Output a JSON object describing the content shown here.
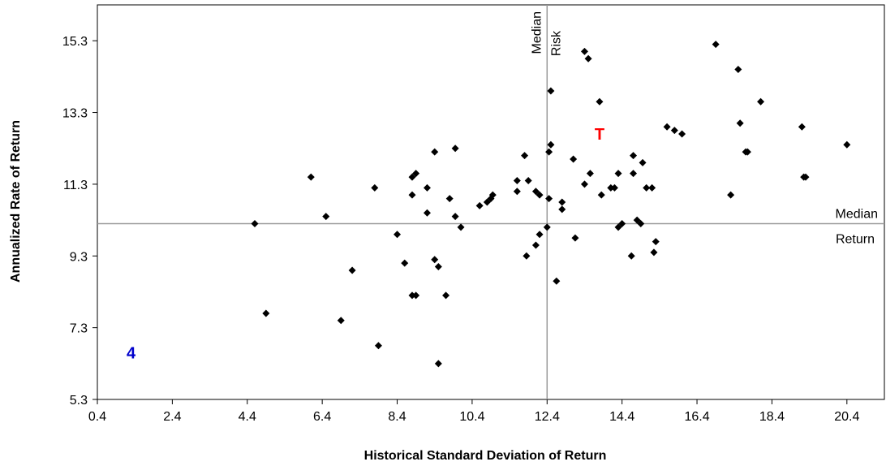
{
  "chart_data": {
    "type": "scatter",
    "xlabel": "Historical Standard Deviation of Return",
    "ylabel": "Annualized Rate of Return",
    "xlim": [
      0.4,
      21.4
    ],
    "ylim": [
      5.3,
      16.3
    ],
    "x_ticks": [
      "0.4",
      "2.4",
      "4.4",
      "6.4",
      "8.4",
      "10.4",
      "12.4",
      "14.4",
      "16.4",
      "18.4",
      "20.4"
    ],
    "y_ticks": [
      "5.3",
      "7.3",
      "9.3",
      "11.3",
      "13.3",
      "15.3"
    ],
    "grid": false,
    "marker_color": "#000000",
    "median_risk": {
      "value": 12.4,
      "label_line1": "Median",
      "label_line2": "Risk"
    },
    "median_return": {
      "value": 10.2,
      "label_line1": "Median",
      "label_line2": "Return"
    },
    "special_points": [
      {
        "label": "T",
        "x": 13.8,
        "y": 12.7,
        "color": "#ff0000"
      },
      {
        "label": "4",
        "x": 1.3,
        "y": 6.6,
        "color": "#0000cc"
      }
    ],
    "points": [
      [
        4.6,
        10.2
      ],
      [
        4.9,
        7.7
      ],
      [
        6.1,
        11.5
      ],
      [
        6.5,
        10.4
      ],
      [
        6.9,
        7.5
      ],
      [
        7.2,
        8.9
      ],
      [
        7.8,
        11.2
      ],
      [
        7.9,
        6.8
      ],
      [
        8.4,
        9.9
      ],
      [
        8.6,
        9.1
      ],
      [
        8.8,
        11.0
      ],
      [
        8.8,
        11.5
      ],
      [
        8.8,
        8.2
      ],
      [
        8.9,
        11.6
      ],
      [
        8.9,
        8.2
      ],
      [
        9.2,
        11.2
      ],
      [
        9.2,
        10.5
      ],
      [
        9.4,
        12.2
      ],
      [
        9.4,
        9.2
      ],
      [
        9.5,
        9.0
      ],
      [
        9.5,
        6.3
      ],
      [
        9.7,
        8.2
      ],
      [
        9.8,
        10.9
      ],
      [
        9.95,
        12.3
      ],
      [
        9.95,
        10.4
      ],
      [
        10.1,
        10.1
      ],
      [
        10.6,
        10.7
      ],
      [
        10.8,
        10.8
      ],
      [
        10.9,
        10.9
      ],
      [
        10.95,
        11.0
      ],
      [
        11.6,
        11.1
      ],
      [
        11.6,
        11.4
      ],
      [
        11.8,
        12.1
      ],
      [
        11.85,
        9.3
      ],
      [
        11.9,
        11.4
      ],
      [
        12.1,
        11.1
      ],
      [
        12.1,
        9.6
      ],
      [
        12.2,
        11.0
      ],
      [
        12.2,
        9.9
      ],
      [
        12.4,
        10.1
      ],
      [
        12.45,
        10.9
      ],
      [
        12.45,
        12.2
      ],
      [
        12.5,
        12.4
      ],
      [
        12.5,
        13.9
      ],
      [
        12.65,
        8.6
      ],
      [
        12.8,
        10.6
      ],
      [
        12.8,
        10.8
      ],
      [
        13.1,
        12.0
      ],
      [
        13.15,
        9.8
      ],
      [
        13.4,
        11.3
      ],
      [
        13.4,
        15.0
      ],
      [
        13.5,
        14.8
      ],
      [
        13.55,
        11.6
      ],
      [
        13.8,
        13.6
      ],
      [
        13.85,
        11.0
      ],
      [
        14.1,
        11.2
      ],
      [
        14.2,
        11.2
      ],
      [
        14.3,
        11.6
      ],
      [
        14.3,
        10.1
      ],
      [
        14.4,
        10.2
      ],
      [
        14.65,
        9.3
      ],
      [
        14.7,
        11.6
      ],
      [
        14.7,
        12.1
      ],
      [
        14.8,
        10.3
      ],
      [
        14.9,
        10.2
      ],
      [
        14.95,
        11.9
      ],
      [
        15.05,
        11.2
      ],
      [
        15.2,
        11.2
      ],
      [
        15.25,
        9.4
      ],
      [
        15.3,
        9.7
      ],
      [
        15.6,
        12.9
      ],
      [
        15.8,
        12.8
      ],
      [
        16.0,
        12.7
      ],
      [
        16.9,
        15.2
      ],
      [
        17.3,
        11.0
      ],
      [
        17.5,
        14.5
      ],
      [
        17.55,
        13.0
      ],
      [
        17.7,
        12.2
      ],
      [
        17.75,
        12.2
      ],
      [
        18.1,
        13.6
      ],
      [
        19.2,
        12.9
      ],
      [
        19.25,
        11.5
      ],
      [
        19.3,
        11.5
      ],
      [
        20.4,
        12.4
      ]
    ]
  }
}
